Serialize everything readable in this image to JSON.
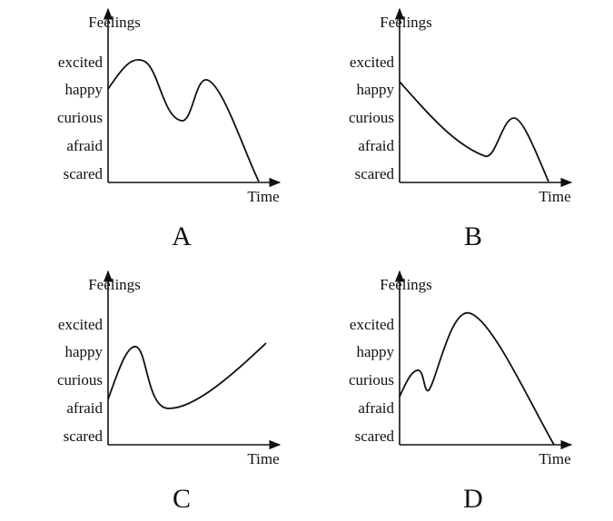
{
  "panels": [
    {
      "label": "A",
      "y_axis_title": "Feelings",
      "x_axis_title": "Time",
      "y_labels": [
        "excited",
        "happy",
        "curious",
        "afraid",
        "scared"
      ]
    },
    {
      "label": "B",
      "y_axis_title": "Feelings",
      "x_axis_title": "Time",
      "y_labels": [
        "excited",
        "happy",
        "curious",
        "afraid",
        "scared"
      ]
    },
    {
      "label": "C",
      "y_axis_title": "Feelings",
      "x_axis_title": "Time",
      "y_labels": [
        "excited",
        "happy",
        "curious",
        "afraid",
        "scared"
      ]
    },
    {
      "label": "D",
      "y_axis_title": "Feelings",
      "x_axis_title": "Time",
      "y_labels": [
        "excited",
        "happy",
        "curious",
        "afraid",
        "scared"
      ]
    }
  ]
}
